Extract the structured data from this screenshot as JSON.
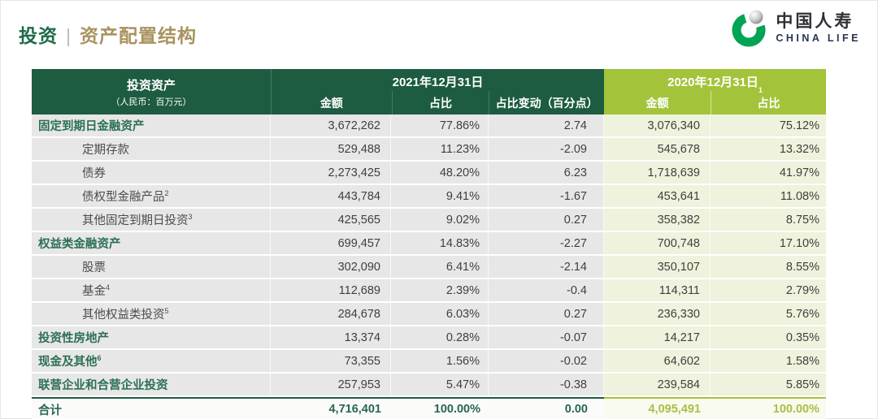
{
  "page": {
    "title": {
      "section": "投资",
      "divider": "|",
      "subtitle": "资产配置结构"
    },
    "logo": {
      "cn": "中国人寿",
      "en": "CHINA LIFE"
    }
  },
  "table": {
    "header": {
      "asset_label": "投资资产",
      "asset_unit": "（人民币：百万元）",
      "period_2021": "2021年12月31日",
      "period_2020": "2020年12月31日",
      "period_2020_sup": "1",
      "col_amount_2021": "金额",
      "col_share_2021": "占比",
      "col_change": "占比变动（百分点）",
      "col_amount_2020": "金额",
      "col_share_2020": "占比"
    },
    "rows": [
      {
        "label": "固定到期日金融资产",
        "sup": "",
        "level": 0,
        "amount_2021": "3,672,262",
        "share_2021": "77.86%",
        "change": "2.74",
        "amount_2020": "3,076,340",
        "share_2020": "75.12%"
      },
      {
        "label": "定期存款",
        "sup": "",
        "level": 1,
        "amount_2021": "529,488",
        "share_2021": "11.23%",
        "change": "-2.09",
        "amount_2020": "545,678",
        "share_2020": "13.32%"
      },
      {
        "label": "债券",
        "sup": "",
        "level": 1,
        "amount_2021": "2,273,425",
        "share_2021": "48.20%",
        "change": "6.23",
        "amount_2020": "1,718,639",
        "share_2020": "41.97%"
      },
      {
        "label": "债权型金融产品",
        "sup": "2",
        "level": 1,
        "amount_2021": "443,784",
        "share_2021": "9.41%",
        "change": "-1.67",
        "amount_2020": "453,641",
        "share_2020": "11.08%"
      },
      {
        "label": "其他固定到期日投资",
        "sup": "3",
        "level": 1,
        "amount_2021": "425,565",
        "share_2021": "9.02%",
        "change": "0.27",
        "amount_2020": "358,382",
        "share_2020": "8.75%"
      },
      {
        "label": "权益类金融资产",
        "sup": "",
        "level": 0,
        "amount_2021": "699,457",
        "share_2021": "14.83%",
        "change": "-2.27",
        "amount_2020": "700,748",
        "share_2020": "17.10%"
      },
      {
        "label": "股票",
        "sup": "",
        "level": 1,
        "amount_2021": "302,090",
        "share_2021": "6.41%",
        "change": "-2.14",
        "amount_2020": "350,107",
        "share_2020": "8.55%"
      },
      {
        "label": "基金",
        "sup": "4",
        "level": 1,
        "amount_2021": "112,689",
        "share_2021": "2.39%",
        "change": "-0.4",
        "amount_2020": "114,311",
        "share_2020": "2.79%"
      },
      {
        "label": "其他权益类投资",
        "sup": "5",
        "level": 1,
        "amount_2021": "284,678",
        "share_2021": "6.03%",
        "change": "0.27",
        "amount_2020": "236,330",
        "share_2020": "5.76%"
      },
      {
        "label": "投资性房地产",
        "sup": "",
        "level": 0,
        "amount_2021": "13,374",
        "share_2021": "0.28%",
        "change": "-0.07",
        "amount_2020": "14,217",
        "share_2020": "0.35%"
      },
      {
        "label": "现金及其他",
        "sup": "6",
        "level": 0,
        "amount_2021": "73,355",
        "share_2021": "1.56%",
        "change": "-0.02",
        "amount_2020": "64,602",
        "share_2020": "1.58%"
      },
      {
        "label": "联营企业和合营企业投资",
        "sup": "",
        "level": 0,
        "amount_2021": "257,953",
        "share_2021": "5.47%",
        "change": "-0.38",
        "amount_2020": "239,584",
        "share_2020": "5.85%"
      }
    ],
    "total": {
      "label": "合计",
      "amount_2021": "4,716,401",
      "share_2021": "100.00%",
      "change": "0.00",
      "amount_2020": "4,095,491",
      "share_2020": "100.00%"
    }
  },
  "colors": {
    "header_dark_green": "#1d5c41",
    "header_light_green": "#a3c43a",
    "cell_gray": "#e7e7e7",
    "cell_green_tint": "#eff2dc",
    "accent_green_text": "#276652",
    "total_2020_text": "#a9bf44",
    "title_green": "#1e6b48",
    "title_gold": "#a8935f",
    "logo_green": "#00a455"
  }
}
